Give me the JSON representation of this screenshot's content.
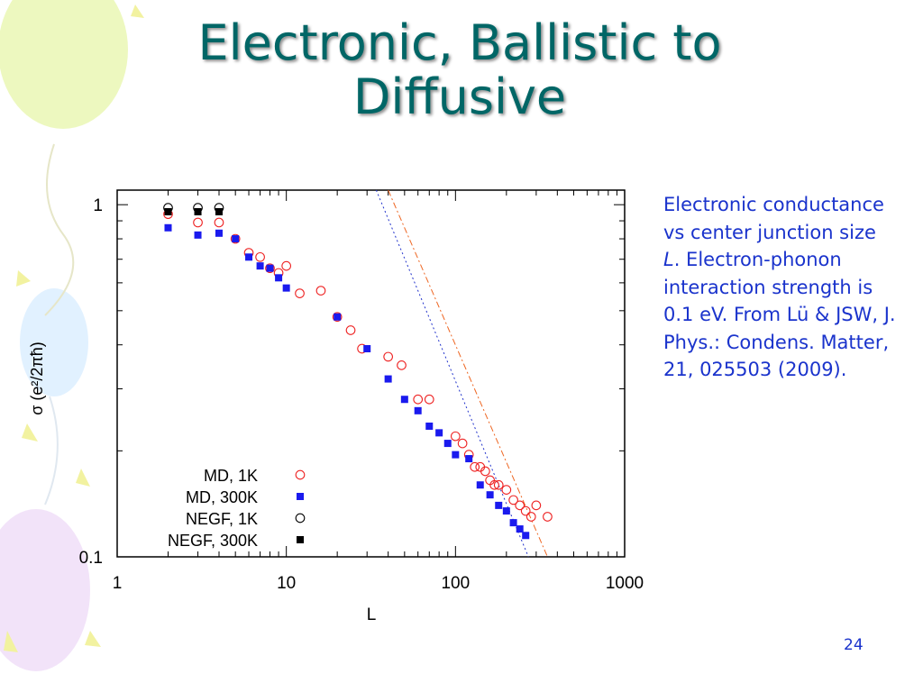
{
  "slide": {
    "title": "Electronic, Ballistic to Diffusive",
    "caption_parts": [
      {
        "text": "Electronic conductance vs center junction size ",
        "italic": false
      },
      {
        "text": "L",
        "italic": true
      },
      {
        "text": ". Electron-phonon interaction strength is 0.1 eV. From Lü & JSW, J. Phys.: Condens. Matter, 21, 025503 (2009).",
        "italic": false
      }
    ],
    "page_number": "24",
    "colors": {
      "title": "#006666",
      "caption": "#1a33cc"
    }
  },
  "chart_data": {
    "type": "scatter",
    "xscale": "log",
    "yscale": "log",
    "xlim": [
      1,
      1000
    ],
    "ylim": [
      0.1,
      1.1
    ],
    "xticks": [
      1,
      10,
      100,
      1000
    ],
    "xtick_labels": [
      "1",
      "10",
      "100",
      "1000"
    ],
    "yticks": [
      0.1,
      1
    ],
    "ytick_labels": [
      "0.1",
      "1"
    ],
    "xlabel": "L",
    "ylabel": "σ (e²/2πħ)",
    "legend_position": "bottom-left",
    "series": [
      {
        "name": "MD, 1K",
        "marker": "open-circle",
        "color": "#ee2222",
        "x": [
          2,
          3,
          4,
          5,
          6,
          7,
          8,
          9,
          10,
          12,
          16,
          20,
          24,
          28,
          40,
          48,
          60,
          70,
          100,
          110,
          120,
          130,
          140,
          150,
          160,
          170,
          180,
          200,
          220,
          240,
          260,
          280,
          300,
          350
        ],
        "y": [
          0.94,
          0.89,
          0.89,
          0.8,
          0.73,
          0.71,
          0.66,
          0.64,
          0.67,
          0.56,
          0.57,
          0.48,
          0.44,
          0.39,
          0.37,
          0.35,
          0.28,
          0.28,
          0.22,
          0.21,
          0.195,
          0.18,
          0.18,
          0.175,
          0.165,
          0.16,
          0.16,
          0.155,
          0.145,
          0.14,
          0.135,
          0.13,
          0.14,
          0.13
        ]
      },
      {
        "name": "MD, 300K",
        "marker": "filled-square",
        "color": "#1a1aee",
        "x": [
          2,
          3,
          4,
          5,
          6,
          7,
          8,
          9,
          10,
          20,
          30,
          40,
          50,
          60,
          70,
          80,
          90,
          100,
          120,
          140,
          160,
          180,
          200,
          220,
          240,
          260
        ],
        "y": [
          0.86,
          0.82,
          0.83,
          0.8,
          0.71,
          0.67,
          0.66,
          0.62,
          0.58,
          0.48,
          0.39,
          0.32,
          0.28,
          0.26,
          0.235,
          0.225,
          0.21,
          0.195,
          0.19,
          0.16,
          0.15,
          0.14,
          0.135,
          0.125,
          0.12,
          0.115
        ]
      },
      {
        "name": "NEGF, 1K",
        "marker": "open-circle",
        "color": "#000000",
        "x": [
          2,
          3,
          4
        ],
        "y": [
          0.98,
          0.98,
          0.98
        ]
      },
      {
        "name": "NEGF, 300K",
        "marker": "filled-square",
        "color": "#000000",
        "x": [
          2,
          3,
          4
        ],
        "y": [
          0.955,
          0.955,
          0.955
        ]
      }
    ],
    "reference_lines": [
      {
        "style": "dotted",
        "color": "#2233cc",
        "x": [
          34,
          270
        ],
        "y": [
          1.1,
          0.1
        ]
      },
      {
        "style": "dash-dot",
        "color": "#ee6622",
        "x": [
          40,
          350
        ],
        "y": [
          1.1,
          0.1
        ]
      }
    ]
  }
}
